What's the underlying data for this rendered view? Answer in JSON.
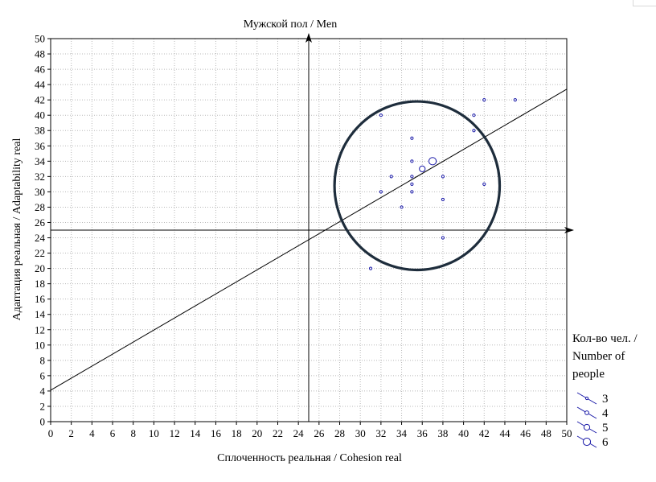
{
  "chart_data": {
    "type": "scatter",
    "title": "Мужской пол / Men",
    "xlabel": "Сплоченность реальная / Cohesion real",
    "ylabel": "Адаптация реальная / Adaptability real",
    "xlim": [
      0,
      50
    ],
    "ylim": [
      0,
      50
    ],
    "xticks": [
      "0",
      "2",
      "4",
      "6",
      "8",
      "10",
      "12",
      "14",
      "16",
      "18",
      "20",
      "22",
      "24",
      "26",
      "28",
      "30",
      "32",
      "34",
      "36",
      "38",
      "40",
      "42",
      "44",
      "46",
      "48",
      "50"
    ],
    "yticks": [
      "0",
      "2",
      "4",
      "6",
      "8",
      "10",
      "12",
      "14",
      "16",
      "18",
      "20",
      "22",
      "24",
      "26",
      "28",
      "30",
      "32",
      "34",
      "36",
      "38",
      "40",
      "42",
      "44",
      "46",
      "48",
      "50"
    ],
    "grid": true,
    "colors": {
      "points": "#1a1aa8",
      "highlight_circle": "#1e2d3c",
      "lines": "#000000",
      "grid": "#b8b8b8"
    },
    "reference_lines": {
      "vertical_x": 25,
      "horizontal_y": 25
    },
    "trend_line": {
      "x": [
        0,
        50
      ],
      "y": [
        4.1,
        43.4
      ]
    },
    "highlight_circle": {
      "center": [
        35.5,
        30.8
      ],
      "radius_x": 8,
      "radius_y": 11
    },
    "points": [
      {
        "x": 31,
        "y": 20,
        "n": 3
      },
      {
        "x": 32,
        "y": 40,
        "n": 3
      },
      {
        "x": 32,
        "y": 30,
        "n": 3
      },
      {
        "x": 33,
        "y": 32,
        "n": 3
      },
      {
        "x": 34,
        "y": 28,
        "n": 3
      },
      {
        "x": 35,
        "y": 37,
        "n": 3
      },
      {
        "x": 35,
        "y": 34,
        "n": 3
      },
      {
        "x": 35,
        "y": 32,
        "n": 3
      },
      {
        "x": 35,
        "y": 31,
        "n": 3
      },
      {
        "x": 35,
        "y": 30,
        "n": 3
      },
      {
        "x": 36,
        "y": 33,
        "n": 5
      },
      {
        "x": 37,
        "y": 34,
        "n": 6
      },
      {
        "x": 38,
        "y": 32,
        "n": 3
      },
      {
        "x": 38,
        "y": 29,
        "n": 3
      },
      {
        "x": 38,
        "y": 24,
        "n": 3
      },
      {
        "x": 41,
        "y": 40,
        "n": 3
      },
      {
        "x": 41,
        "y": 38,
        "n": 3
      },
      {
        "x": 42,
        "y": 42,
        "n": 3
      },
      {
        "x": 42,
        "y": 31,
        "n": 3
      },
      {
        "x": 45,
        "y": 42,
        "n": 3
      }
    ],
    "legend": {
      "title_lines": [
        "Кол-во чел. /",
        "Number of",
        "people"
      ],
      "entries": [
        "3",
        "4",
        "5",
        "6"
      ],
      "placement": "right"
    }
  }
}
